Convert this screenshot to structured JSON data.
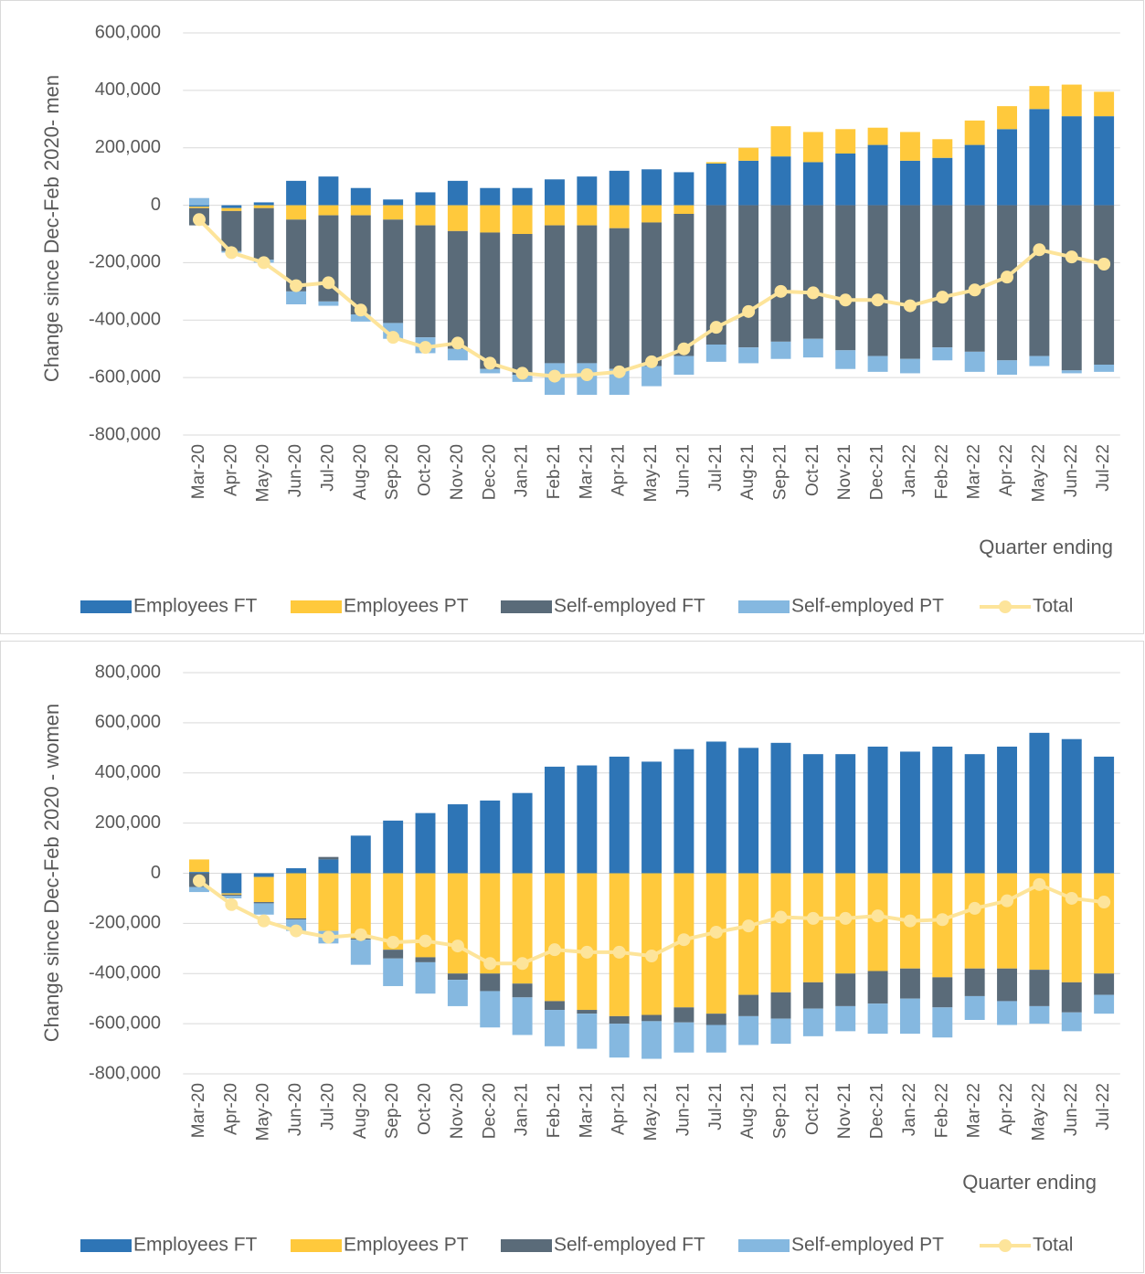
{
  "chart_data": [
    {
      "type": "bar",
      "stacked": true,
      "y_label": "Change since Dec-Feb 2020- men",
      "x_label": "Quarter ending",
      "categories": [
        "Mar-20",
        "Apr-20",
        "May-20",
        "Jun-20",
        "Jul-20",
        "Aug-20",
        "Sep-20",
        "Oct-20",
        "Nov-20",
        "Dec-20",
        "Jan-21",
        "Feb-21",
        "Mar-21",
        "Apr-21",
        "May-21",
        "Jun-21",
        "Jul-21",
        "Aug-21",
        "Sep-21",
        "Oct-21",
        "Nov-21",
        "Dec-21",
        "Jan-22",
        "Feb-22",
        "Mar-22",
        "Apr-22",
        "May-22",
        "Jun-22",
        "Jul-22"
      ],
      "ylim": [
        -800000,
        600000
      ],
      "yticks": [
        {
          "value": -800000,
          "label": "-800,000"
        },
        {
          "value": -600000,
          "label": "-600,000"
        },
        {
          "value": -400000,
          "label": "-400,000"
        },
        {
          "value": -200000,
          "label": "-200,000"
        },
        0,
        {
          "value": 200000,
          "label": "200,000"
        },
        {
          "value": 400000,
          "label": "400,000"
        },
        {
          "value": 600000,
          "label": "600,000"
        }
      ],
      "grid": true,
      "legend": "bottom",
      "series": [
        {
          "name": "Employees FT",
          "color": "#2e75b6",
          "values": [
            -5000,
            -10000,
            10000,
            85000,
            100000,
            60000,
            20000,
            45000,
            85000,
            60000,
            60000,
            90000,
            100000,
            120000,
            125000,
            115000,
            145000,
            155000,
            170000,
            150000,
            180000,
            210000,
            155000,
            165000,
            210000,
            265000,
            335000,
            310000,
            310000
          ]
        },
        {
          "name": "Employees PT",
          "color": "#ffc93c",
          "values": [
            -5000,
            -10000,
            -10000,
            -50000,
            -35000,
            -35000,
            -50000,
            -70000,
            -90000,
            -95000,
            -100000,
            -70000,
            -70000,
            -80000,
            -60000,
            -30000,
            5000,
            45000,
            105000,
            105000,
            85000,
            60000,
            100000,
            65000,
            85000,
            80000,
            80000,
            110000,
            85000
          ]
        },
        {
          "name": "Self-employed FT",
          "color": "#5a6b79",
          "values": [
            -60000,
            -140000,
            -180000,
            -250000,
            -300000,
            -345000,
            -360000,
            -390000,
            -410000,
            -475000,
            -490000,
            -480000,
            -480000,
            -490000,
            -500000,
            -495000,
            -485000,
            -495000,
            -475000,
            -465000,
            -505000,
            -525000,
            -535000,
            -495000,
            -510000,
            -540000,
            -525000,
            -575000,
            -555000
          ]
        },
        {
          "name": "Self-employed PT",
          "color": "#85b8e0",
          "values": [
            25000,
            -5000,
            -10000,
            -45000,
            -15000,
            -25000,
            -55000,
            -55000,
            -40000,
            -15000,
            -25000,
            -110000,
            -110000,
            -90000,
            -70000,
            -65000,
            -60000,
            -55000,
            -60000,
            -65000,
            -65000,
            -55000,
            -50000,
            -45000,
            -70000,
            -50000,
            -35000,
            -10000,
            -25000
          ]
        },
        {
          "name": "Total",
          "type": "line",
          "color": "#fde49a",
          "values": [
            -50000,
            -165000,
            -200000,
            -280000,
            -270000,
            -365000,
            -460000,
            -495000,
            -480000,
            -550000,
            -585000,
            -595000,
            -590000,
            -580000,
            -545000,
            -500000,
            -425000,
            -370000,
            -300000,
            -305000,
            -330000,
            -330000,
            -350000,
            -320000,
            -295000,
            -250000,
            -155000,
            -180000,
            -205000
          ]
        }
      ]
    },
    {
      "type": "bar",
      "stacked": true,
      "y_label": "Change since Dec-Feb 2020  - women",
      "x_label": "Quarter ending",
      "categories": [
        "Mar-20",
        "Apr-20",
        "May-20",
        "Jun-20",
        "Jul-20",
        "Aug-20",
        "Sep-20",
        "Oct-20",
        "Nov-20",
        "Dec-20",
        "Jan-21",
        "Feb-21",
        "Mar-21",
        "Apr-21",
        "May-21",
        "Jun-21",
        "Jul-21",
        "Aug-21",
        "Sep-21",
        "Oct-21",
        "Nov-21",
        "Dec-21",
        "Jan-22",
        "Feb-22",
        "Mar-22",
        "Apr-22",
        "May-22",
        "Jun-22",
        "Jul-22"
      ],
      "ylim": [
        -800000,
        800000
      ],
      "yticks": [
        {
          "value": -800000,
          "label": "-800,000"
        },
        {
          "value": -600000,
          "label": "-600,000"
        },
        {
          "value": -400000,
          "label": "-400,000"
        },
        {
          "value": -200000,
          "label": "-200,000"
        },
        0,
        {
          "value": 200000,
          "label": "200,000"
        },
        {
          "value": 400000,
          "label": "400,000"
        },
        {
          "value": 600000,
          "label": "600,000"
        },
        {
          "value": 800000,
          "label": "800,000"
        }
      ],
      "grid": true,
      "legend": "bottom",
      "series": [
        {
          "name": "Employees FT",
          "color": "#2e75b6",
          "values": [
            5000,
            -80000,
            -15000,
            20000,
            55000,
            150000,
            210000,
            240000,
            275000,
            290000,
            320000,
            425000,
            430000,
            465000,
            445000,
            495000,
            525000,
            500000,
            520000,
            475000,
            475000,
            505000,
            485000,
            505000,
            475000,
            505000,
            560000,
            535000,
            465000
          ]
        },
        {
          "name": "Employees PT",
          "color": "#ffc93c",
          "values": [
            50000,
            -5000,
            -100000,
            -180000,
            -230000,
            -260000,
            -305000,
            -335000,
            -400000,
            -400000,
            -440000,
            -510000,
            -545000,
            -570000,
            -565000,
            -535000,
            -560000,
            -485000,
            -475000,
            -435000,
            -400000,
            -390000,
            -380000,
            -415000,
            -380000,
            -380000,
            -385000,
            -435000,
            -400000
          ]
        },
        {
          "name": "Self-employed FT",
          "color": "#5a6b79",
          "values": [
            -55000,
            -5000,
            -5000,
            -5000,
            10000,
            -5000,
            -35000,
            -20000,
            -25000,
            -70000,
            -55000,
            -35000,
            -15000,
            -30000,
            -25000,
            -60000,
            -45000,
            -85000,
            -105000,
            -105000,
            -130000,
            -130000,
            -120000,
            -120000,
            -110000,
            -130000,
            -145000,
            -120000,
            -85000
          ]
        },
        {
          "name": "Self-employed PT",
          "color": "#85b8e0",
          "values": [
            -20000,
            -10000,
            -45000,
            -45000,
            -50000,
            -100000,
            -110000,
            -125000,
            -105000,
            -145000,
            -150000,
            -145000,
            -140000,
            -135000,
            -150000,
            -120000,
            -110000,
            -115000,
            -100000,
            -110000,
            -100000,
            -120000,
            -140000,
            -120000,
            -95000,
            -95000,
            -70000,
            -75000,
            -75000
          ]
        },
        {
          "name": "Total",
          "type": "line",
          "color": "#fde49a",
          "values": [
            -30000,
            -125000,
            -190000,
            -230000,
            -255000,
            -245000,
            -275000,
            -270000,
            -290000,
            -360000,
            -360000,
            -305000,
            -315000,
            -315000,
            -330000,
            -265000,
            -235000,
            -210000,
            -175000,
            -180000,
            -180000,
            -170000,
            -190000,
            -185000,
            -140000,
            -110000,
            -45000,
            -100000,
            -115000
          ]
        }
      ]
    }
  ]
}
